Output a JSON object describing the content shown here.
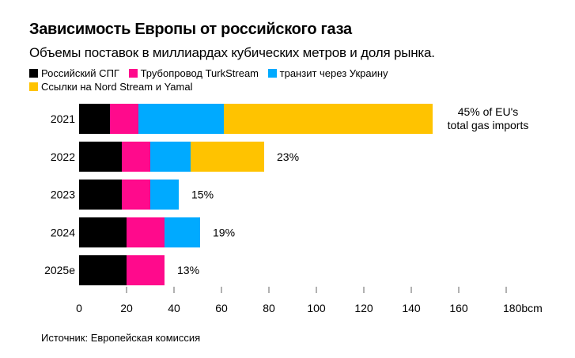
{
  "header": {
    "title": "Зависимость Европы от российского газа",
    "subtitle": "Объемы поставок в миллиардах кубических метров и доля рынка."
  },
  "legend": [
    {
      "label": "Российский СПГ",
      "color": "#000000"
    },
    {
      "label": "Трубопровод TurkStream",
      "color": "#ff0a8c"
    },
    {
      "label": "транзит через Украину",
      "color": "#00aaff"
    },
    {
      "label": "Ссылки на Nord Stream и Yamal",
      "color": "#ffc300"
    }
  ],
  "footer": {
    "source": "Источник: Европейская комиссия"
  },
  "chart_data": {
    "type": "bar",
    "orientation": "horizontal",
    "stacked": true,
    "title": "Зависимость Европы от российского газа",
    "subtitle": "Объемы поставок в миллиардах кубических метров и доля рынка.",
    "categories": [
      "2021",
      "2022",
      "2023",
      "2024",
      "2025e"
    ],
    "series": [
      {
        "name": "Российский СПГ",
        "color": "#000000",
        "values": [
          13,
          18,
          18,
          20,
          20
        ]
      },
      {
        "name": "Трубопровод TurkStream",
        "color": "#ff0a8c",
        "values": [
          12,
          12,
          12,
          16,
          16
        ]
      },
      {
        "name": "транзит через Украину",
        "color": "#00aaff",
        "values": [
          36,
          17,
          12,
          15,
          0
        ]
      },
      {
        "name": "Ссылки на Nord Stream и Yamal",
        "color": "#ffc300",
        "values": [
          88,
          31,
          0,
          0,
          0
        ]
      }
    ],
    "annotations": [
      "45% of EU's|total gas imports",
      "23%",
      "15%",
      "19%",
      "13%"
    ],
    "xlim": [
      0,
      180
    ],
    "xticks": [
      "0",
      "20",
      "40",
      "60",
      "80",
      "100",
      "120",
      "140",
      "160",
      "180bcm"
    ],
    "xtick_values": [
      0,
      20,
      40,
      60,
      80,
      100,
      120,
      140,
      160,
      180
    ],
    "xlabel": "bcm",
    "ylabel": "",
    "grid": false
  }
}
